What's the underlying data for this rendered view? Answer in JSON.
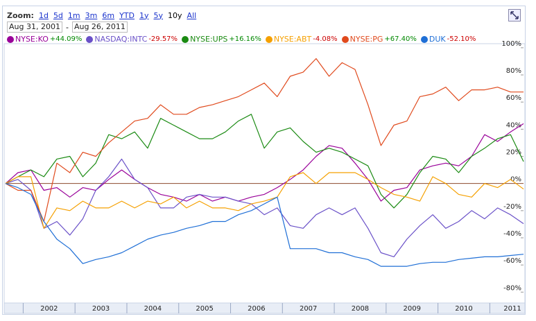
{
  "toolbar": {
    "zoom_label": "Zoom:",
    "zoom_options": [
      "1d",
      "5d",
      "1m",
      "3m",
      "6m",
      "YTD",
      "1y",
      "5y",
      "10y",
      "All"
    ],
    "zoom_selected": 8,
    "date_from": "Aug 31, 2001",
    "date_sep": "-",
    "date_to": "Aug 26, 2011"
  },
  "chart_data": {
    "type": "line",
    "grid": false,
    "x": [
      2001.66,
      2001.9,
      2002.15,
      2002.4,
      2002.65,
      2002.9,
      2003.15,
      2003.4,
      2003.65,
      2003.9,
      2004.15,
      2004.4,
      2004.65,
      2004.9,
      2005.15,
      2005.4,
      2005.65,
      2005.9,
      2006.15,
      2006.4,
      2006.65,
      2006.9,
      2007.15,
      2007.4,
      2007.65,
      2007.9,
      2008.15,
      2008.4,
      2008.65,
      2008.9,
      2009.15,
      2009.4,
      2009.65,
      2009.9,
      2010.15,
      2010.4,
      2010.65,
      2010.9,
      2011.15,
      2011.4,
      2011.65
    ],
    "series": [
      {
        "name": "NYSE:KO",
        "change": "+44.09%",
        "color": "#990099",
        "values": [
          0,
          8,
          10,
          -5,
          -3,
          -10,
          -3,
          -5,
          3,
          10,
          3,
          -3,
          -8,
          -10,
          -13,
          -8,
          -13,
          -10,
          -13,
          -10,
          -8,
          -3,
          3,
          10,
          20,
          28,
          26,
          15,
          3,
          -13,
          -5,
          -3,
          10,
          13,
          15,
          13,
          20,
          36,
          31,
          38,
          44.09
        ]
      },
      {
        "name": "NASDAQ:INTC",
        "change": "-29.57%",
        "color": "#6a51c8",
        "values": [
          0,
          3,
          -5,
          -33,
          -28,
          -38,
          -26,
          -5,
          5,
          18,
          3,
          -3,
          -18,
          -18,
          -10,
          -8,
          -10,
          -10,
          -13,
          -15,
          -23,
          -18,
          -31,
          -33,
          -23,
          -18,
          -23,
          -18,
          -33,
          -51,
          -54,
          -41,
          -31,
          -23,
          -33,
          -28,
          -20,
          -26,
          -18,
          -23,
          -29.57
        ]
      },
      {
        "name": "NYSE:UPS",
        "change": "+16.16%",
        "color": "#1a8a12",
        "values": [
          0,
          5,
          10,
          5,
          18,
          20,
          5,
          15,
          36,
          33,
          38,
          26,
          48,
          43,
          38,
          33,
          33,
          38,
          46,
          51,
          26,
          38,
          41,
          31,
          23,
          26,
          23,
          18,
          13,
          -8,
          -18,
          -8,
          8,
          20,
          18,
          8,
          20,
          26,
          33,
          36,
          16.16
        ]
      },
      {
        "name": "NYSE:ABT",
        "change": "-4.08%",
        "color": "#f5a000",
        "values": [
          0,
          5,
          5,
          -33,
          -18,
          -20,
          -13,
          -18,
          -18,
          -13,
          -18,
          -13,
          -15,
          -10,
          -18,
          -13,
          -18,
          -18,
          -20,
          -15,
          -13,
          -10,
          5,
          8,
          0,
          8,
          8,
          8,
          3,
          -3,
          -8,
          -10,
          -13,
          5,
          0,
          -8,
          -10,
          0,
          -3,
          3,
          -4.08
        ]
      },
      {
        "name": "NYSE:PG",
        "change": "+67.40%",
        "color": "#e04a1d",
        "values": [
          0,
          -5,
          -5,
          -28,
          15,
          8,
          23,
          20,
          30,
          38,
          46,
          48,
          58,
          51,
          51,
          56,
          58,
          61,
          64,
          69,
          74,
          64,
          79,
          82,
          92,
          79,
          89,
          84,
          58,
          28,
          43,
          46,
          64,
          66,
          71,
          61,
          69,
          69,
          71,
          67.4,
          67.4
        ]
      },
      {
        "name": "DUK",
        "change": "-52.10%",
        "color": "#1f6fd6",
        "values": [
          0,
          -3,
          -8,
          -28,
          -41,
          -48,
          -59,
          -56,
          -54,
          -51,
          -46,
          -41,
          -38,
          -36,
          -33,
          -31,
          -28,
          -28,
          -23,
          -20,
          -15,
          -10,
          -48,
          -48,
          -48,
          -51,
          -51,
          -54,
          -56,
          -61,
          -61,
          -61,
          -59,
          -58,
          -58,
          -56,
          -55,
          -54,
          -54,
          -53,
          -52.1
        ]
      }
    ],
    "xlim": [
      2001.66,
      2011.65
    ],
    "xticks": [
      2002,
      2003,
      2004,
      2005,
      2006,
      2007,
      2008,
      2009,
      2010,
      2011
    ],
    "ylim": [
      -88,
      103
    ],
    "yticks": [
      {
        "value": 100,
        "label": "100%"
      },
      {
        "value": 80,
        "label": "80%"
      },
      {
        "value": 60,
        "label": "60%"
      },
      {
        "value": 40,
        "label": "40%"
      },
      {
        "value": 20,
        "label": "20%"
      },
      {
        "value": 0,
        "label": "0%"
      },
      {
        "value": -20,
        "label": "-20%"
      },
      {
        "value": -40,
        "label": "-40%"
      },
      {
        "value": -60,
        "label": "-60%"
      },
      {
        "value": -80,
        "label": "-80%"
      }
    ]
  }
}
